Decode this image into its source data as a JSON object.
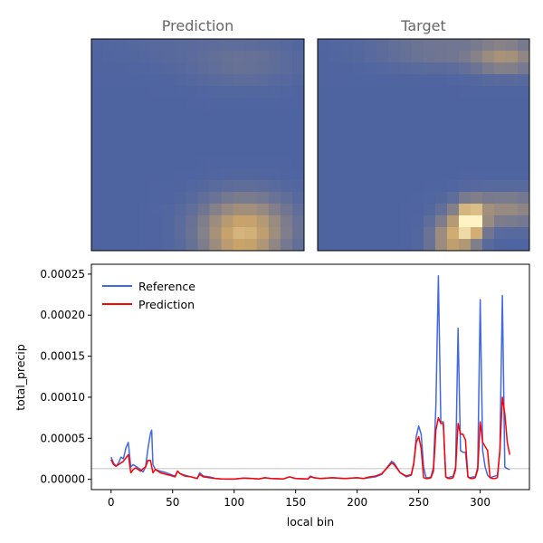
{
  "colors": {
    "reference": "#4169e1",
    "prediction": "#ff0000",
    "heatmap_low": "#4a62a3",
    "heatmap_mid": "#c9a46a",
    "heatmap_high": "#fff3c4",
    "threshold": "#b0b0b0"
  },
  "chart_data": [
    {
      "type": "heatmap",
      "title": "Prediction",
      "rows": 18,
      "cols": 18,
      "background_level": 0.02,
      "blobs": [
        {
          "r": 15.5,
          "c": 12.5,
          "sr": 1.8,
          "sc": 2.6,
          "amp": 0.55
        },
        {
          "r": 17.0,
          "c": 12.0,
          "sr": 1.2,
          "sc": 2.0,
          "amp": 0.2
        },
        {
          "r": 1.5,
          "c": 12.5,
          "sr": 1.4,
          "sc": 3.0,
          "amp": 0.12
        }
      ]
    },
    {
      "type": "heatmap",
      "title": "Target",
      "rows": 18,
      "cols": 18,
      "background_level": 0.02,
      "blobs": [
        {
          "r": 15.0,
          "c": 12.5,
          "sr": 1.0,
          "sc": 0.8,
          "amp": 0.95
        },
        {
          "r": 16.5,
          "c": 11.0,
          "sr": 1.3,
          "sc": 1.2,
          "amp": 0.55
        },
        {
          "r": 14.0,
          "c": 15.5,
          "sr": 1.0,
          "sc": 2.5,
          "amp": 0.35
        },
        {
          "r": 1.0,
          "c": 15.5,
          "sr": 1.0,
          "sc": 2.0,
          "amp": 0.4
        },
        {
          "r": 0.5,
          "c": 10.0,
          "sr": 1.0,
          "sc": 3.0,
          "amp": 0.15
        }
      ]
    },
    {
      "type": "line",
      "xlabel": "local bin",
      "ylabel": "total_precip",
      "xlim": [
        -16,
        340
      ],
      "ylim": [
        -1.25e-05,
        0.000262
      ],
      "xticks": [
        0,
        50,
        100,
        150,
        200,
        250,
        300
      ],
      "yticks": [
        0.0,
        5e-05,
        0.0001,
        0.00015,
        0.0002,
        0.00025
      ],
      "ytick_labels": [
        "0.00000",
        "0.00005",
        "0.00010",
        "0.00015",
        "0.00020",
        "0.00025"
      ],
      "legend_position": "upper-left",
      "threshold_y": 1.3e-05,
      "series": [
        {
          "name": "Reference",
          "x": [
            0,
            2,
            4,
            6,
            8,
            10,
            12,
            14,
            16,
            18,
            20,
            22,
            24,
            26,
            28,
            30,
            32,
            33,
            34,
            36,
            40,
            45,
            50,
            52,
            54,
            56,
            60,
            65,
            70,
            72,
            75,
            80,
            85,
            90,
            100,
            108,
            115,
            120,
            125,
            130,
            140,
            145,
            150,
            160,
            162,
            165,
            170,
            180,
            190,
            200,
            205,
            210,
            215,
            220,
            225,
            228,
            230,
            235,
            240,
            244,
            246,
            248,
            250,
            252,
            254,
            256,
            258,
            260,
            262,
            264,
            266,
            268,
            270,
            272,
            274,
            276,
            278,
            280,
            282,
            284,
            286,
            288,
            290,
            292,
            294,
            296,
            298,
            300,
            302,
            304,
            306,
            308,
            310,
            312,
            314,
            316,
            318,
            320,
            322,
            324
          ],
          "y": [
            2.7e-05,
            2e-05,
            1.6e-05,
            2e-05,
            2.7e-05,
            2.5e-05,
            3.8e-05,
            4.5e-05,
            1.5e-05,
            1.8e-05,
            1.6e-05,
            1.4e-05,
            1.2e-05,
            9e-06,
            1.5e-05,
            3.8e-05,
            5.6e-05,
            6e-05,
            1.8e-05,
            1.2e-05,
            1e-05,
            8e-06,
            5e-06,
            4e-06,
            1e-05,
            7e-06,
            5e-06,
            3e-06,
            1e-06,
            8e-06,
            4e-06,
            3e-06,
            1e-06,
            5e-07,
            3e-07,
            1.5e-06,
            1e-06,
            5e-07,
            2e-06,
            1e-06,
            5e-07,
            3e-06,
            1e-06,
            5e-07,
            4e-06,
            2e-06,
            1e-06,
            2e-06,
            1e-06,
            2e-06,
            1e-06,
            2e-06,
            3e-06,
            6e-06,
            1.6e-05,
            2.2e-05,
            2e-05,
            8e-06,
            3e-06,
            5e-06,
            1.8e-05,
            5.2e-05,
            6.5e-05,
            5.5e-05,
            1.5e-05,
            2e-06,
            2e-06,
            3e-06,
            1.5e-05,
            9e-05,
            0.000248,
            7e-05,
            7e-05,
            3e-06,
            2e-06,
            3e-06,
            4e-06,
            1.5e-05,
            0.000184,
            3.5e-05,
            3.3e-05,
            3.3e-05,
            3e-06,
            2e-06,
            3e-06,
            3e-06,
            1.5e-05,
            0.000219,
            3.5e-05,
            1.5e-05,
            5e-06,
            2e-06,
            3e-06,
            4e-06,
            5e-06,
            3.5e-05,
            0.000224,
            1.5e-05,
            1.3e-05,
            1.2e-05
          ]
        },
        {
          "name": "Prediction",
          "x": [
            0,
            2,
            4,
            6,
            8,
            10,
            12,
            14,
            16,
            18,
            20,
            22,
            24,
            26,
            28,
            30,
            32,
            34,
            36,
            40,
            45,
            50,
            52,
            54,
            56,
            60,
            65,
            70,
            72,
            75,
            80,
            85,
            90,
            100,
            108,
            115,
            120,
            125,
            130,
            140,
            145,
            150,
            160,
            162,
            165,
            170,
            180,
            190,
            200,
            205,
            210,
            215,
            220,
            225,
            228,
            230,
            235,
            240,
            244,
            246,
            248,
            250,
            252,
            254,
            256,
            258,
            260,
            262,
            264,
            266,
            268,
            270,
            272,
            274,
            276,
            278,
            280,
            282,
            284,
            286,
            288,
            290,
            292,
            294,
            296,
            298,
            300,
            302,
            304,
            306,
            308,
            310,
            312,
            314,
            316,
            318,
            320,
            322,
            324
          ],
          "y": [
            2.4e-05,
            1.8e-05,
            1.6e-05,
            1.8e-05,
            2e-05,
            2.2e-05,
            2.6e-05,
            3e-05,
            8e-06,
            1.2e-05,
            1.4e-05,
            1.2e-05,
            1e-05,
            1.3e-05,
            1.5e-05,
            2.3e-05,
            2.3e-05,
            8e-06,
            1.2e-05,
            8e-06,
            6e-06,
            4e-06,
            3e-06,
            1e-05,
            7e-06,
            4e-06,
            3e-06,
            1e-06,
            6e-06,
            3e-06,
            2e-06,
            1e-06,
            5e-07,
            3e-07,
            1.5e-06,
            1e-06,
            5e-07,
            2e-06,
            1e-06,
            5e-07,
            3e-06,
            1e-06,
            5e-07,
            3e-06,
            2e-06,
            1e-06,
            2e-06,
            1e-06,
            2e-06,
            1e-06,
            3e-06,
            4e-06,
            7e-06,
            1.5e-05,
            2e-05,
            1.8e-05,
            8e-06,
            4e-06,
            6e-06,
            2e-05,
            4.5e-05,
            5.2e-05,
            3.8e-05,
            2e-06,
            1e-06,
            1e-06,
            2e-06,
            1e-05,
            6e-05,
            7.5e-05,
            6.8e-05,
            6.8e-05,
            3e-06,
            1e-06,
            1e-06,
            2e-06,
            1.2e-05,
            6.8e-05,
            5.5e-05,
            5.5e-05,
            4.8e-05,
            3e-06,
            1e-06,
            1e-06,
            2e-06,
            1.2e-05,
            7e-05,
            4.5e-05,
            4e-05,
            3.5e-05,
            2e-06,
            1e-06,
            1e-06,
            2e-06,
            3.5e-05,
            0.0001,
            8e-05,
            4.5e-05,
            3e-05
          ]
        }
      ]
    }
  ]
}
